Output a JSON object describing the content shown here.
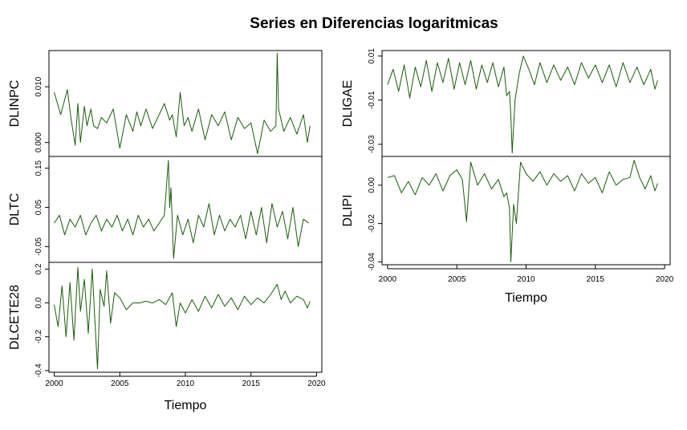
{
  "title": "Series en Diferencias logaritmicas",
  "chart_data": [
    {
      "type": "line",
      "ylabel": "DLINPC",
      "xlabel": "",
      "ylim": [
        -0.0025,
        0.0165
      ],
      "yticks": [
        0.0,
        0.01
      ],
      "ytick_labels": [
        "0.000",
        "0.010"
      ],
      "xlim": [
        1999.6,
        2020.4
      ],
      "color": "#1a5c0a",
      "series": [
        {
          "x": [
            2000.0,
            2000.5,
            2001.0,
            2001.3,
            2001.6,
            2001.8,
            2002.0,
            2002.3,
            2002.5,
            2002.8,
            2003.0,
            2003.3,
            2003.6,
            2004.0,
            2004.5,
            2005.0,
            2005.5,
            2006.0,
            2006.3,
            2006.6,
            2007.0,
            2007.5,
            2008.0,
            2008.4,
            2008.8,
            2009.0,
            2009.3,
            2009.6,
            2009.9,
            2010.2,
            2010.5,
            2011.0,
            2011.5,
            2012.0,
            2012.5,
            2013.0,
            2013.5,
            2014.0,
            2014.5,
            2015.0,
            2015.5,
            2016.0,
            2016.5,
            2016.9,
            2017.0,
            2017.1,
            2017.5,
            2018.0,
            2018.5,
            2019.0,
            2019.3,
            2019.5
          ],
          "y": [
            0.009,
            0.005,
            0.0095,
            0.004,
            -0.0005,
            0.007,
            0.0,
            0.0065,
            0.003,
            0.006,
            0.003,
            0.0025,
            0.0045,
            0.0035,
            0.006,
            -0.001,
            0.005,
            0.002,
            0.0055,
            0.003,
            0.006,
            0.0025,
            0.005,
            0.007,
            0.004,
            0.005,
            0.001,
            0.009,
            0.003,
            0.0045,
            0.002,
            0.006,
            0.0005,
            0.005,
            0.003,
            0.0055,
            0.0005,
            0.0045,
            0.0025,
            0.0035,
            -0.002,
            0.004,
            0.002,
            0.003,
            0.016,
            0.006,
            0.002,
            0.0045,
            0.0015,
            0.005,
            0.0,
            0.003
          ]
        }
      ]
    },
    {
      "type": "line",
      "ylabel": "DLTC",
      "xlabel": "",
      "ylim": [
        -0.09,
        0.18
      ],
      "yticks": [
        -0.05,
        0.05,
        0.15
      ],
      "ytick_labels": [
        "-0.05",
        "0.05",
        "0.15"
      ],
      "xlim": [
        1999.6,
        2020.4
      ],
      "color": "#1a5c0a",
      "series": [
        {
          "x": [
            2000.0,
            2000.4,
            2000.8,
            2001.2,
            2001.6,
            2002.0,
            2002.4,
            2002.8,
            2003.2,
            2003.6,
            2004.0,
            2004.4,
            2004.8,
            2005.2,
            2005.6,
            2006.0,
            2006.4,
            2006.8,
            2007.2,
            2007.6,
            2008.0,
            2008.4,
            2008.7,
            2008.8,
            2008.9,
            2009.1,
            2009.4,
            2009.8,
            2010.2,
            2010.6,
            2011.0,
            2011.4,
            2011.8,
            2012.2,
            2012.6,
            2013.0,
            2013.4,
            2013.8,
            2014.2,
            2014.6,
            2015.0,
            2015.4,
            2015.8,
            2016.2,
            2016.6,
            2017.0,
            2017.4,
            2017.8,
            2018.2,
            2018.6,
            2019.0,
            2019.4
          ],
          "y": [
            0.01,
            0.03,
            -0.02,
            0.02,
            0.0,
            0.03,
            -0.02,
            0.01,
            0.03,
            -0.01,
            0.02,
            0.0,
            0.03,
            -0.01,
            0.02,
            -0.02,
            0.03,
            0.0,
            0.02,
            -0.01,
            0.01,
            0.03,
            0.17,
            0.05,
            0.1,
            -0.08,
            0.03,
            -0.02,
            0.02,
            -0.04,
            0.03,
            0.0,
            0.06,
            -0.02,
            0.03,
            -0.01,
            0.02,
            0.0,
            0.03,
            -0.03,
            0.04,
            -0.02,
            0.05,
            -0.04,
            0.06,
            0.0,
            0.04,
            -0.03,
            0.05,
            -0.05,
            0.02,
            0.01
          ]
        }
      ]
    },
    {
      "type": "line",
      "ylabel": "DLCETE28",
      "xlabel": "Tiempo",
      "ylim": [
        -0.41,
        0.24
      ],
      "yticks": [
        -0.4,
        -0.2,
        0.0,
        0.2
      ],
      "ytick_labels": [
        "-0.4",
        "-0.2",
        "0.0",
        "0.2"
      ],
      "xticks": [
        2000,
        2005,
        2010,
        2015,
        2020
      ],
      "xtick_labels": [
        "2000",
        "2005",
        "2010",
        "2015",
        "2020"
      ],
      "xlim": [
        1999.6,
        2020.4
      ],
      "color": "#1a5c0a",
      "series": [
        {
          "x": [
            2000.0,
            2000.3,
            2000.6,
            2000.9,
            2001.2,
            2001.5,
            2001.8,
            2002.0,
            2002.3,
            2002.6,
            2002.9,
            2003.1,
            2003.3,
            2003.5,
            2003.8,
            2004.0,
            2004.3,
            2004.6,
            2005.0,
            2005.5,
            2006.0,
            2006.5,
            2007.0,
            2007.5,
            2008.0,
            2008.5,
            2009.0,
            2009.3,
            2009.6,
            2010.0,
            2010.5,
            2011.0,
            2011.5,
            2012.0,
            2012.5,
            2013.0,
            2013.5,
            2014.0,
            2014.5,
            2015.0,
            2015.5,
            2016.0,
            2016.5,
            2017.0,
            2017.3,
            2017.6,
            2018.0,
            2018.5,
            2019.0,
            2019.3,
            2019.5
          ],
          "y": [
            -0.01,
            -0.14,
            0.1,
            -0.2,
            0.12,
            -0.22,
            0.21,
            -0.05,
            0.14,
            -0.18,
            0.2,
            -0.1,
            -0.39,
            0.08,
            -0.02,
            0.19,
            -0.12,
            0.06,
            0.03,
            -0.04,
            0.0,
            0.0,
            0.01,
            0.0,
            0.02,
            -0.01,
            0.06,
            -0.14,
            0.0,
            -0.06,
            0.02,
            -0.05,
            0.04,
            -0.03,
            0.05,
            -0.02,
            0.03,
            -0.04,
            0.04,
            -0.01,
            0.03,
            0.0,
            0.05,
            0.11,
            0.02,
            0.07,
            0.0,
            0.04,
            0.02,
            -0.03,
            0.01
          ]
        }
      ]
    },
    {
      "type": "line",
      "ylabel": "DLIGAE",
      "xlabel": "",
      "ylim": [
        -0.0355,
        0.0125
      ],
      "yticks": [
        -0.03,
        -0.01,
        0.01
      ],
      "ytick_labels": [
        "-0.03",
        "-0.01",
        "0.01"
      ],
      "xlim": [
        1999.6,
        2020.4
      ],
      "color": "#1a5c0a",
      "series": [
        {
          "x": [
            2000.0,
            2000.4,
            2000.8,
            2001.2,
            2001.6,
            2002.0,
            2002.4,
            2002.8,
            2003.2,
            2003.6,
            2004.0,
            2004.4,
            2004.8,
            2005.2,
            2005.6,
            2006.0,
            2006.4,
            2006.8,
            2007.2,
            2007.6,
            2008.0,
            2008.4,
            2008.6,
            2008.8,
            2008.9,
            2009.0,
            2009.2,
            2009.5,
            2009.8,
            2010.2,
            2010.6,
            2011.0,
            2011.5,
            2012.0,
            2012.5,
            2013.0,
            2013.5,
            2014.0,
            2014.5,
            2015.0,
            2015.5,
            2016.0,
            2016.5,
            2017.0,
            2017.5,
            2018.0,
            2018.5,
            2019.0,
            2019.3,
            2019.5
          ],
          "y": [
            -0.003,
            0.004,
            -0.006,
            0.006,
            -0.009,
            0.005,
            -0.004,
            0.008,
            -0.006,
            0.007,
            -0.002,
            0.009,
            -0.005,
            0.007,
            -0.003,
            0.008,
            -0.005,
            0.006,
            -0.002,
            0.007,
            -0.004,
            0.005,
            -0.008,
            -0.006,
            -0.017,
            -0.034,
            -0.01,
            0.002,
            0.01,
            0.004,
            -0.003,
            0.007,
            -0.002,
            0.006,
            -0.001,
            0.005,
            -0.003,
            0.007,
            0.0,
            0.006,
            -0.002,
            0.006,
            -0.004,
            0.007,
            -0.002,
            0.005,
            -0.003,
            0.004,
            -0.005,
            -0.001
          ]
        }
      ]
    },
    {
      "type": "line",
      "ylabel": "DLIPI",
      "xlabel": "Tiempo",
      "ylim": [
        -0.0415,
        0.015
      ],
      "yticks": [
        -0.04,
        -0.02,
        0.0
      ],
      "ytick_labels": [
        "-0.04",
        "-0.02",
        "0.00"
      ],
      "xticks": [
        2000,
        2005,
        2010,
        2015,
        2020
      ],
      "xtick_labels": [
        "2000",
        "2005",
        "2010",
        "2015",
        "2020"
      ],
      "xlim": [
        1999.6,
        2020.4
      ],
      "color": "#1a5c0a",
      "series": [
        {
          "x": [
            2000.0,
            2000.5,
            2001.0,
            2001.5,
            2002.0,
            2002.5,
            2003.0,
            2003.5,
            2004.0,
            2004.5,
            2005.0,
            2005.4,
            2005.7,
            2006.0,
            2006.5,
            2007.0,
            2007.5,
            2008.0,
            2008.4,
            2008.6,
            2008.8,
            2008.9,
            2009.1,
            2009.3,
            2009.6,
            2010.0,
            2010.5,
            2011.0,
            2011.5,
            2012.0,
            2012.5,
            2013.0,
            2013.5,
            2014.0,
            2014.5,
            2015.0,
            2015.5,
            2016.0,
            2016.5,
            2017.0,
            2017.5,
            2017.8,
            2018.2,
            2018.6,
            2019.0,
            2019.3,
            2019.5
          ],
          "y": [
            0.004,
            0.005,
            -0.004,
            0.002,
            -0.005,
            0.004,
            0.0,
            0.006,
            -0.003,
            0.005,
            0.008,
            0.003,
            -0.019,
            0.012,
            0.0,
            0.006,
            -0.002,
            0.003,
            -0.006,
            -0.004,
            -0.012,
            -0.04,
            -0.01,
            -0.02,
            0.012,
            0.006,
            0.002,
            0.007,
            0.0,
            0.006,
            0.002,
            0.005,
            -0.003,
            0.006,
            0.001,
            0.004,
            -0.004,
            0.007,
            0.0,
            0.003,
            0.004,
            0.013,
            0.004,
            -0.002,
            0.005,
            -0.003,
            0.001
          ]
        }
      ]
    }
  ]
}
